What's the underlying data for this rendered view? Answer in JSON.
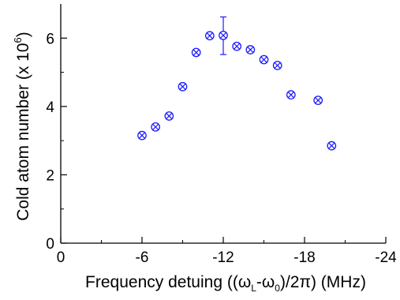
{
  "chart_data": {
    "type": "scatter",
    "xlabel": "",
    "ylabel": "",
    "xlim": [
      0,
      -24
    ],
    "ylim": [
      0,
      7
    ],
    "x_ticks": [
      "0",
      "-6",
      "-12",
      "-18",
      "-24"
    ],
    "y_ticks": [
      "0",
      "2",
      "4",
      "6"
    ],
    "x_tick_values": [
      0,
      -6,
      -12,
      -18,
      -24
    ],
    "y_tick_values": [
      0,
      2,
      4,
      6
    ],
    "grid": false,
    "legend": "none",
    "marker": "circle-x",
    "colors": {
      "marker": "#1a1aff",
      "axis": "#000000"
    },
    "series": [
      {
        "points": [
          {
            "x": -6,
            "y": 3.15
          },
          {
            "x": -7,
            "y": 3.4
          },
          {
            "x": -8,
            "y": 3.72
          },
          {
            "x": -9,
            "y": 4.58
          },
          {
            "x": -10,
            "y": 5.58
          },
          {
            "x": -11,
            "y": 6.07
          },
          {
            "x": -12,
            "y": 6.08,
            "err_low": 5.52,
            "err_high": 6.62
          },
          {
            "x": -13,
            "y": 5.76
          },
          {
            "x": -14,
            "y": 5.66
          },
          {
            "x": -15,
            "y": 5.37
          },
          {
            "x": -16,
            "y": 5.2
          },
          {
            "x": -17,
            "y": 4.34
          },
          {
            "x": -19,
            "y": 4.18
          },
          {
            "x": -20,
            "y": 2.85
          }
        ]
      }
    ]
  },
  "axes": {
    "x_title": {
      "prefix": "Frequency detuing ((ω",
      "sub1": "L",
      "middle": "-ω",
      "sub2": "0",
      "suffix": ")/2π) (MHz)"
    },
    "y_title": {
      "text": "Cold atom number (x 10",
      "sup": "6",
      "close": ")"
    }
  }
}
